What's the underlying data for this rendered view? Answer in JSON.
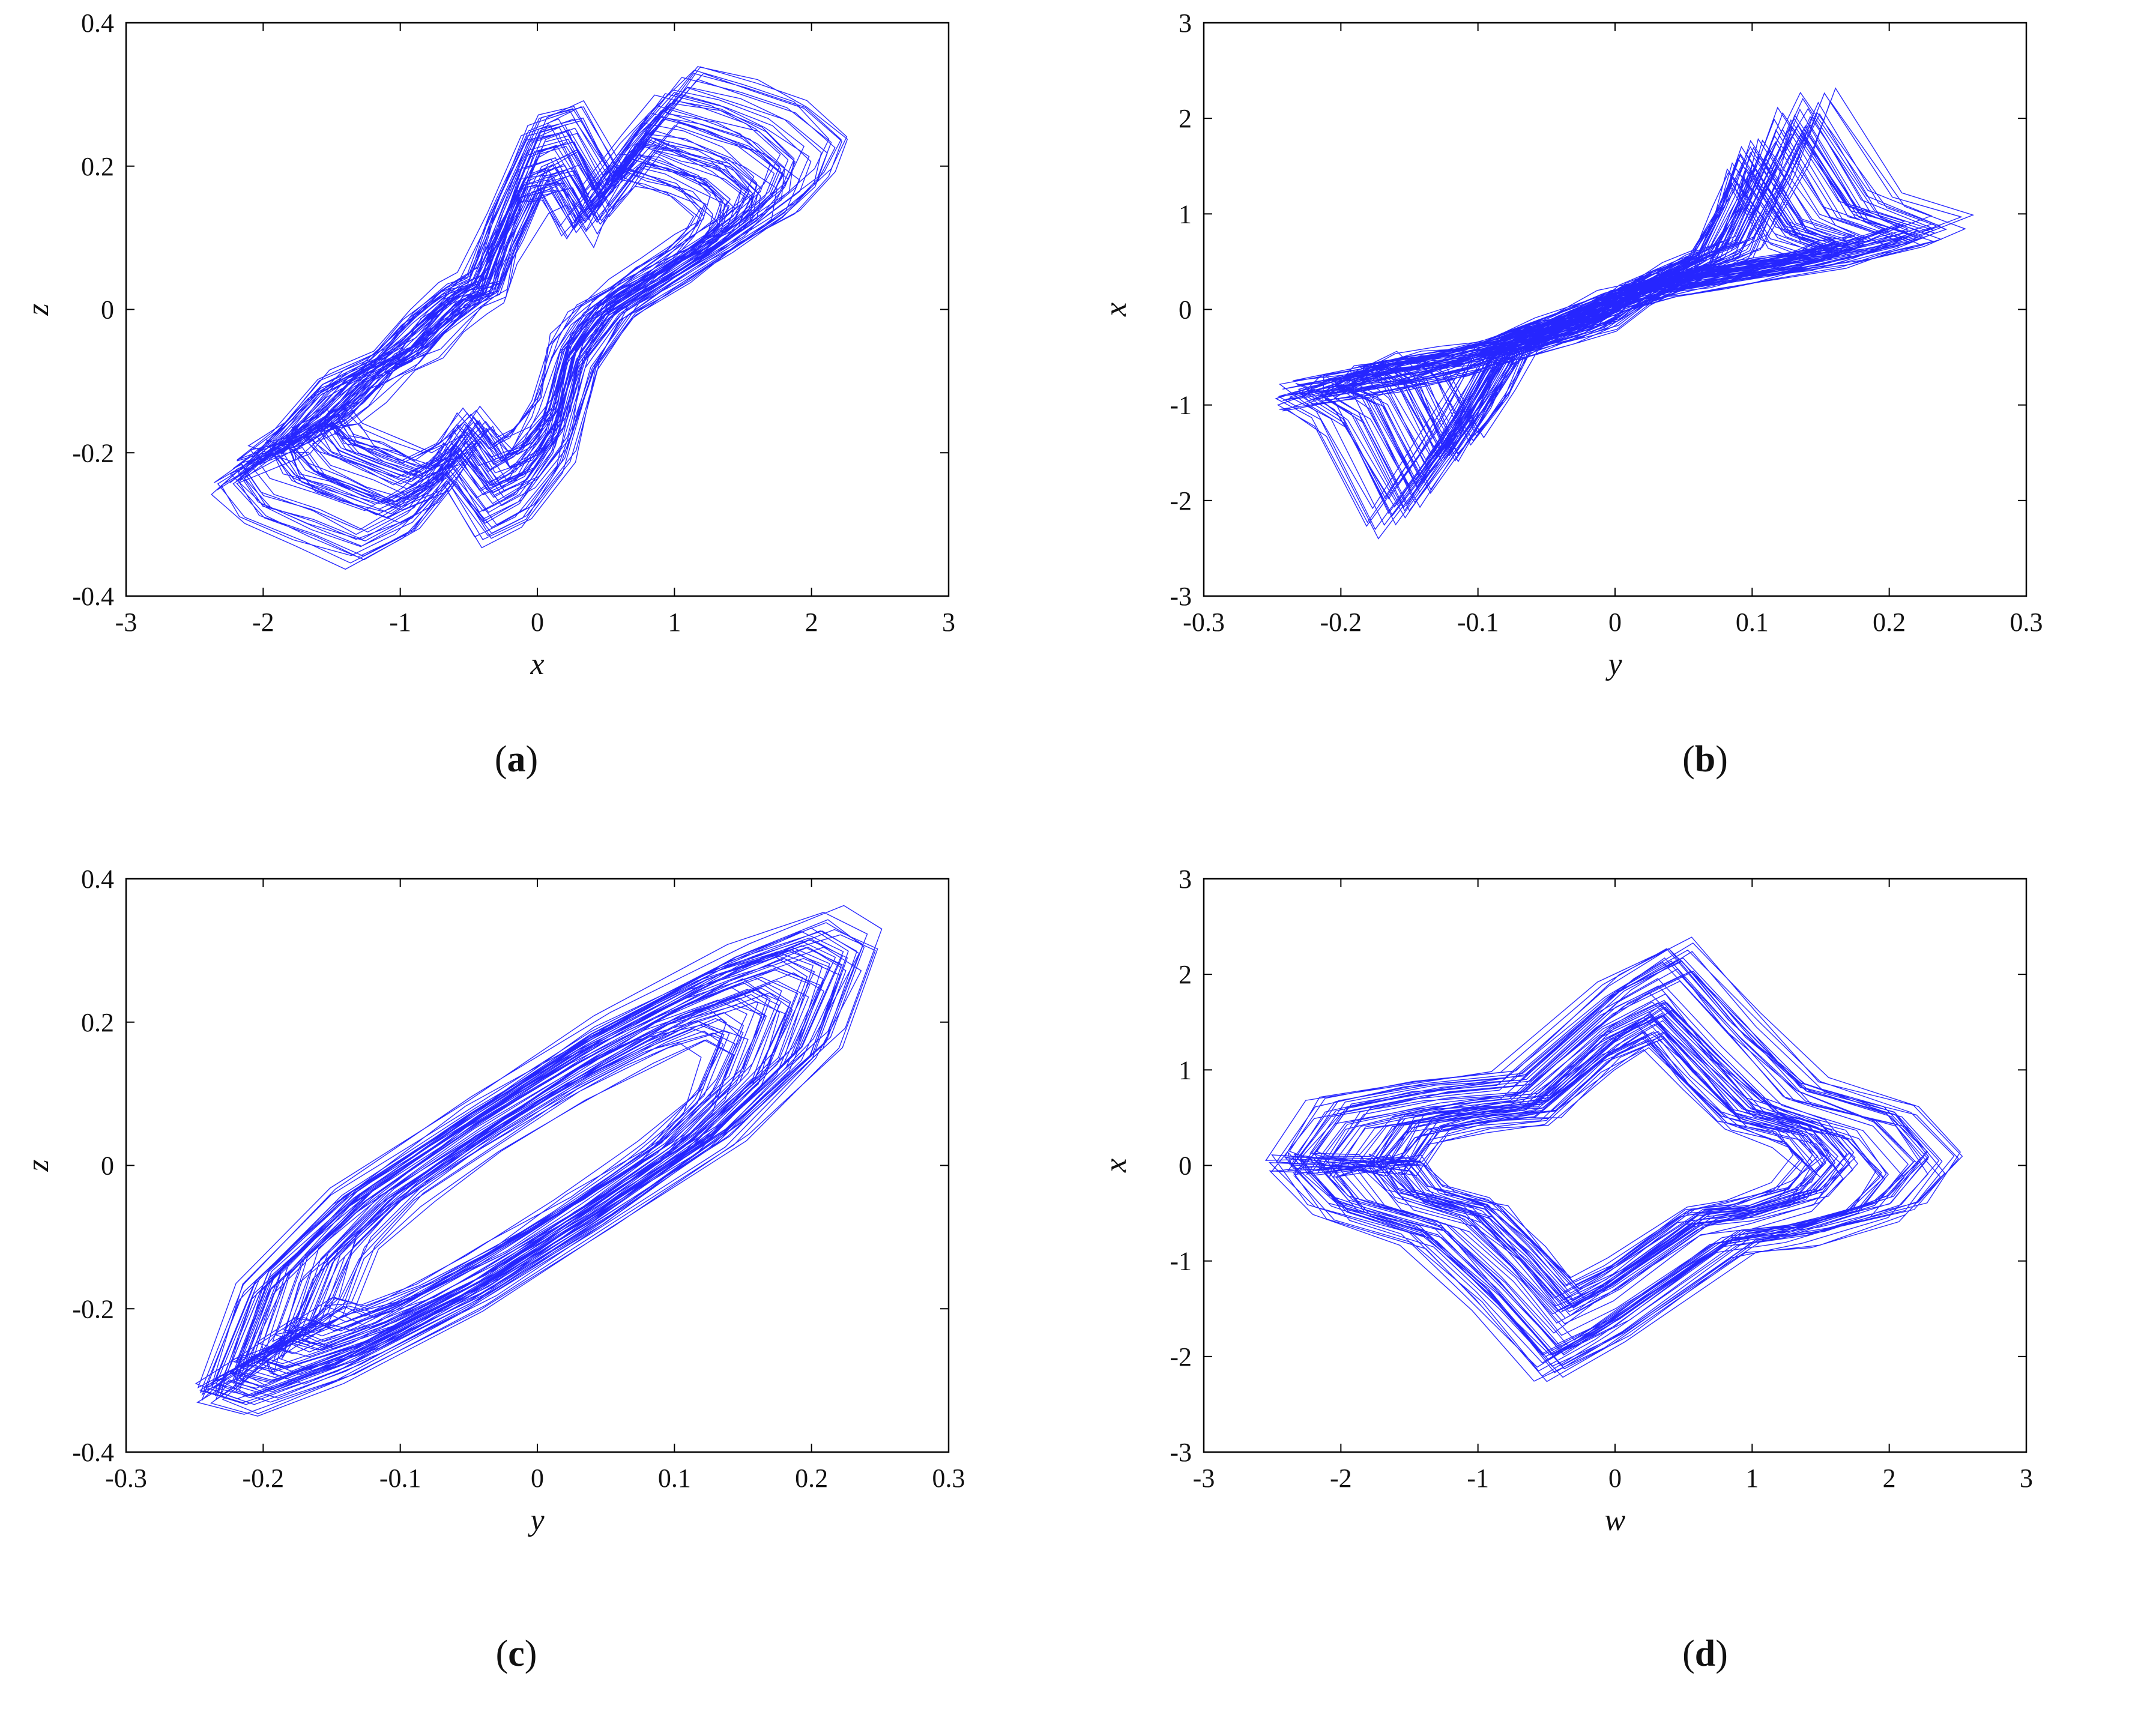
{
  "figure": {
    "line_color": "#0000FF",
    "panels": [
      {
        "id": "a",
        "caption_letter": "a",
        "chart_data": {
          "type": "line",
          "title": "",
          "xlabel": "x",
          "ylabel": "z",
          "xlim": [
            -3,
            3
          ],
          "ylim": [
            -0.4,
            0.4
          ],
          "xticks": [
            -3,
            -2,
            -1,
            0,
            1,
            2,
            3
          ],
          "xtick_labels": [
            "-3",
            "-2",
            "-1",
            "0",
            "1",
            "2",
            "3"
          ],
          "yticks": [
            -0.4,
            -0.2,
            0,
            0.2,
            0.4
          ],
          "ytick_labels": [
            "-0.4",
            "-0.2",
            "0",
            "0.2",
            "0.4"
          ],
          "grid": false,
          "series": [
            {
              "x": [
                -2.4,
                -2.1,
                -1.7,
                -1.3,
                -1.0,
                -0.7,
                -0.5,
                -0.3,
                0.0,
                0.3,
                0.6,
                0.9,
                1.2,
                1.6,
                2.0,
                2.3,
                2.2,
                1.9,
                1.5,
                1.1,
                0.7,
                0.4,
                0.2,
                -0.1,
                -0.4,
                -0.7,
                -1.0,
                -1.4,
                -1.8,
                -2.2,
                -2.4
              ],
              "y": [
                -0.25,
                -0.2,
                -0.12,
                -0.08,
                -0.02,
                0.03,
                0.05,
                0.15,
                0.28,
                0.3,
                0.2,
                0.28,
                0.35,
                0.33,
                0.3,
                0.25,
                0.2,
                0.15,
                0.1,
                0.05,
                0.0,
                -0.08,
                -0.22,
                -0.3,
                -0.33,
                -0.25,
                -0.32,
                -0.36,
                -0.33,
                -0.3,
                -0.25
              ]
            }
          ]
        }
      },
      {
        "id": "b",
        "caption_letter": "b",
        "chart_data": {
          "type": "line",
          "title": "",
          "xlabel": "y",
          "ylabel": "x",
          "xlim": [
            -0.3,
            0.3
          ],
          "ylim": [
            -3,
            3
          ],
          "xticks": [
            -0.3,
            -0.2,
            -0.1,
            0,
            0.1,
            0.2,
            0.3
          ],
          "xtick_labels": [
            "-0.3",
            "-0.2",
            "-0.1",
            "0",
            "0.1",
            "0.2",
            "0.3"
          ],
          "yticks": [
            -3,
            -2,
            -1,
            0,
            1,
            2,
            3
          ],
          "ytick_labels": [
            "-3",
            "-2",
            "-1",
            "0",
            "1",
            "2",
            "3"
          ],
          "grid": false,
          "series": [
            {
              "x": [
                -0.25,
                -0.2,
                -0.15,
                -0.12,
                -0.08,
                -0.04,
                -0.01,
                0.02,
                0.06,
                0.1,
                0.13,
                0.15,
                0.2,
                0.25,
                0.22,
                0.18,
                0.12,
                0.08,
                0.04,
                0.0,
                -0.05,
                -0.1,
                -0.14,
                -0.18,
                -0.22,
                -0.25
              ],
              "y": [
                -0.95,
                -0.85,
                -0.7,
                -0.6,
                -0.4,
                -0.25,
                -0.1,
                0.2,
                0.5,
                0.75,
                1.6,
                2.3,
                1.2,
                0.95,
                0.8,
                0.65,
                0.5,
                0.4,
                0.3,
                0.1,
                -0.2,
                -0.5,
                -1.5,
                -2.3,
                -1.2,
                -0.95
              ]
            }
          ]
        }
      },
      {
        "id": "c",
        "caption_letter": "c",
        "chart_data": {
          "type": "line",
          "title": "",
          "xlabel": "y",
          "ylabel": "z",
          "xlim": [
            -0.3,
            0.3
          ],
          "ylim": [
            -0.4,
            0.4
          ],
          "xticks": [
            -0.3,
            -0.2,
            -0.1,
            0,
            0.1,
            0.2,
            0.3
          ],
          "xtick_labels": [
            "-0.3",
            "-0.2",
            "-0.1",
            "0",
            "0.1",
            "0.2",
            "0.3"
          ],
          "yticks": [
            -0.4,
            -0.2,
            0,
            0.2,
            0.4
          ],
          "ytick_labels": [
            "-0.4",
            "-0.2",
            "0",
            "0.2",
            "0.4"
          ],
          "grid": false,
          "series": [
            {
              "x": [
                -0.25,
                -0.22,
                -0.15,
                -0.05,
                0.05,
                0.15,
                0.22,
                0.25,
                0.22,
                0.15,
                0.05,
                -0.05,
                -0.15,
                -0.22,
                -0.25
              ],
              "y": [
                -0.33,
                -0.35,
                -0.3,
                -0.2,
                -0.08,
                0.05,
                0.18,
                0.32,
                0.35,
                0.3,
                0.2,
                0.08,
                -0.05,
                -0.18,
                -0.33
              ]
            }
          ]
        }
      },
      {
        "id": "d",
        "caption_letter": "d",
        "chart_data": {
          "type": "line",
          "title": "",
          "xlabel": "w",
          "ylabel": "x",
          "xlim": [
            -3,
            3
          ],
          "ylim": [
            -3,
            3
          ],
          "xticks": [
            -3,
            -2,
            -1,
            0,
            1,
            2,
            3
          ],
          "xtick_labels": [
            "-3",
            "-2",
            "-1",
            "0",
            "1",
            "2",
            "3"
          ],
          "yticks": [
            -3,
            -2,
            -1,
            0,
            1,
            2,
            3
          ],
          "ytick_labels": [
            "-3",
            "-2",
            "-1",
            "0",
            "1",
            "2",
            "3"
          ],
          "grid": false,
          "series": [
            {
              "x": [
                -2.5,
                -2.2,
                -1.5,
                -0.8,
                0.0,
                0.5,
                1.0,
                1.5,
                2.2,
                2.5,
                2.2,
                1.5,
                1.0,
                0.0,
                -0.5,
                -1.0,
                -1.5,
                -2.2,
                -2.5
              ],
              "y": [
                0.0,
                0.6,
                0.8,
                0.9,
                1.9,
                2.3,
                1.5,
                0.8,
                0.5,
                0.0,
                -0.5,
                -0.8,
                -0.9,
                -1.9,
                -2.3,
                -1.5,
                -0.8,
                -0.5,
                0.0
              ]
            }
          ]
        }
      }
    ]
  }
}
